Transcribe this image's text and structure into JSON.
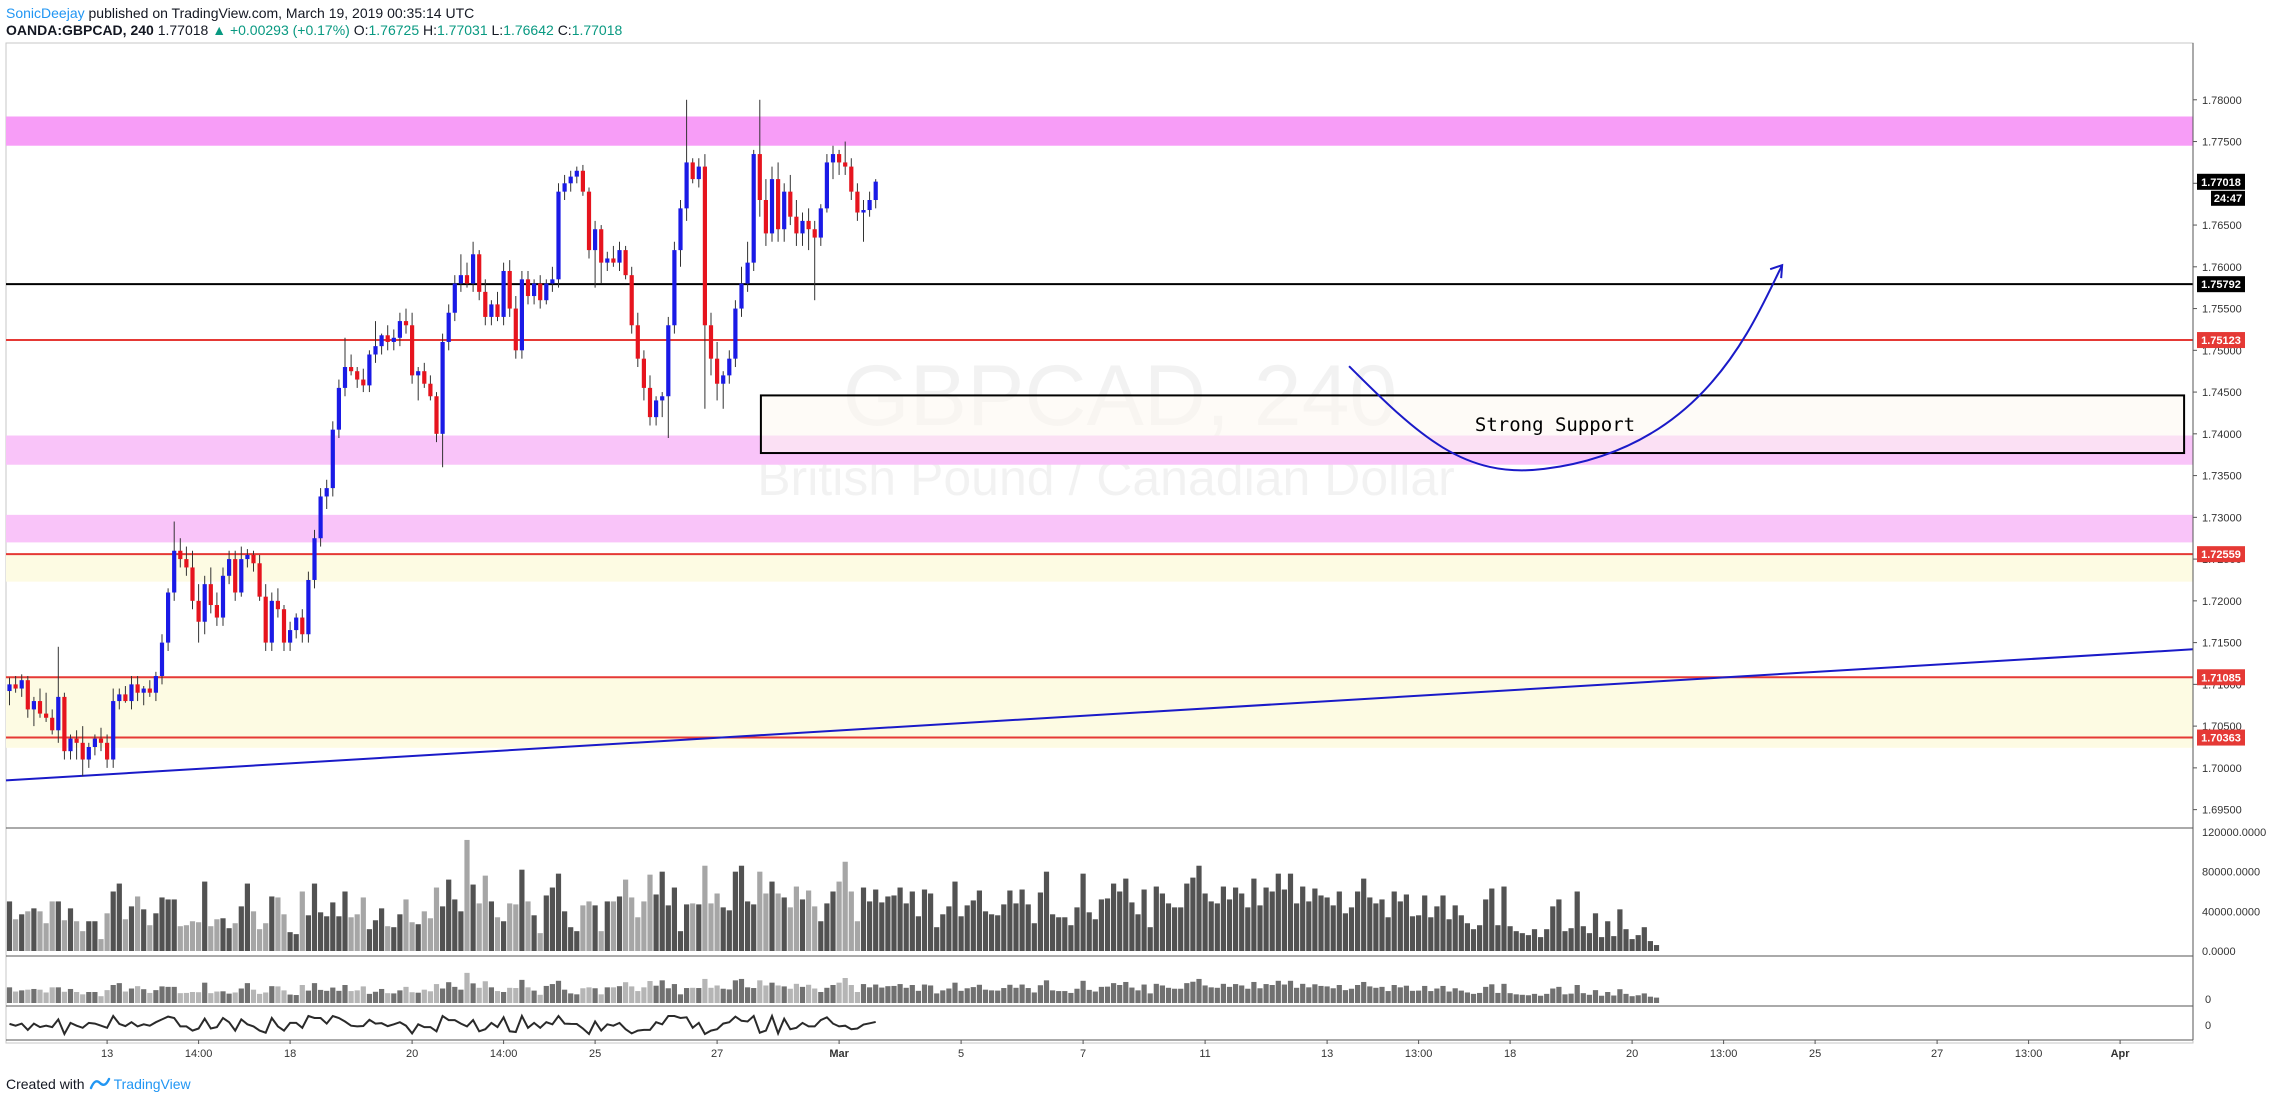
{
  "header": {
    "author": "SonicDeejay",
    "published_text": " published on TradingView.com, March 19, 2019 00:35:14 UTC",
    "symbol": "OANDA:GBPCAD, 240",
    "last": "1.77018",
    "change": "▲ +0.00293 (+0.17%)",
    "o_label": "O:",
    "o_value": "1.76725",
    "h_label": "H:",
    "h_value": "1.77031",
    "l_label": "L:",
    "l_value": "1.76642",
    "c_label": "C:",
    "c_value": "1.77018"
  },
  "footer": {
    "created_text": "Created with",
    "brand": "TradingView"
  },
  "chart_data": {
    "type": "candlestick",
    "watermark_symbol": "GBPCAD, 240",
    "watermark_name": "British Pound / Canadian Dollar",
    "y_ticks": [
      "1.78000",
      "1.77500",
      "1.77000",
      "1.76500",
      "1.76000",
      "1.75500",
      "1.75000",
      "1.74500",
      "1.74000",
      "1.73500",
      "1.73000",
      "1.72500",
      "1.72000",
      "1.71500",
      "1.71000",
      "1.70500",
      "1.70000",
      "1.69500"
    ],
    "ylim": [
      1.6928,
      1.7868
    ],
    "x_ticks": [
      {
        "label": "13",
        "i": 16
      },
      {
        "label": "14:00",
        "i": 31
      },
      {
        "label": "18",
        "i": 46
      },
      {
        "label": "20",
        "i": 66
      },
      {
        "label": "14:00",
        "i": 81
      },
      {
        "label": "25",
        "i": 96
      },
      {
        "label": "27",
        "i": 116
      },
      {
        "label": "Mar",
        "i": 136
      },
      {
        "label": "5",
        "i": 156
      },
      {
        "label": "7",
        "i": 176
      },
      {
        "label": "11",
        "i": 196
      },
      {
        "label": "13",
        "i": 216
      },
      {
        "label": "13:00",
        "i": 231
      },
      {
        "label": "18",
        "i": 246
      },
      {
        "label": "20",
        "i": 266
      },
      {
        "label": "13:00",
        "i": 281
      },
      {
        "label": "25",
        "i": 296
      },
      {
        "label": "27",
        "i": 316
      },
      {
        "label": "13:00",
        "i": 331
      },
      {
        "label": "Apr",
        "i": 346
      }
    ],
    "zones": [
      {
        "kind": "resistance",
        "y1": 1.7745,
        "y2": 1.778,
        "color": "#f79df7"
      },
      {
        "kind": "support",
        "y1": 1.7363,
        "y2": 1.7398,
        "color": "#f9c4f9"
      },
      {
        "kind": "support",
        "y1": 1.727,
        "y2": 1.7303,
        "color": "#f9c4f9"
      },
      {
        "kind": "area",
        "y1": 1.7223,
        "y2": 1.7256,
        "color": "#fdfbe3"
      },
      {
        "kind": "area",
        "y1": 1.7024,
        "y2": 1.7108,
        "color": "#fdfbe3"
      }
    ],
    "levels": [
      {
        "value": 1.75792,
        "label": "1.75792",
        "color": "#000000"
      },
      {
        "value": 1.75123,
        "label": "1.75123",
        "color": "#e53935"
      },
      {
        "value": 1.72559,
        "label": "1.72559",
        "color": "#e53935"
      },
      {
        "value": 1.71085,
        "label": "1.71085",
        "color": "#e53935"
      },
      {
        "value": 1.70363,
        "label": "1.70363",
        "color": "#e53935"
      }
    ],
    "last_price": {
      "value": 1.77018,
      "label": "1.77018",
      "countdown": "24:47"
    },
    "support_box": {
      "label": "Strong Support",
      "top": 1.7446,
      "bottom": 1.7377,
      "i_start": 124,
      "i_end": 356
    },
    "trendline": {
      "i1": 0,
      "y1": 1.6985,
      "i2": 356,
      "y2": 1.7142,
      "color": "#1a1ac8"
    },
    "arrow_path": {
      "color": "#1a1ac8",
      "start": [
        219.6,
        1.7481
      ],
      "low": [
        251.6,
        1.7358
      ],
      "end": [
        290.6,
        1.7602
      ]
    },
    "volume": {
      "ticks": [
        "120000.0000",
        "80000.0000",
        "40000.0000",
        "0.0000"
      ],
      "max": 120000,
      "values": [
        50000,
        32000,
        37000,
        40000,
        43000,
        40000,
        28000,
        50000,
        50000,
        31000,
        43000,
        30000,
        20000,
        30000,
        30000,
        12000,
        38000,
        60000,
        68000,
        32000,
        45000,
        55000,
        42000,
        26000,
        38000,
        54000,
        52000,
        52000,
        25000,
        26000,
        30000,
        29000,
        70000,
        25000,
        32000,
        33000,
        23000,
        28000,
        45000,
        68000,
        40000,
        22000,
        28000,
        55000,
        54000,
        37000,
        19000,
        17000,
        60000,
        36000,
        68000,
        39000,
        35000,
        49000,
        35000,
        60000,
        34000,
        37000,
        54000,
        22000,
        31000,
        43000,
        25000,
        24000,
        37000,
        52000,
        29000,
        27000,
        40000,
        33000,
        64000,
        45000,
        72000,
        52000,
        40000,
        112000,
        67000,
        48000,
        76000,
        50000,
        34000,
        30000,
        48000,
        47000,
        82000,
        50000,
        36000,
        18000,
        56000,
        64000,
        78000,
        40000,
        24000,
        20000,
        46000,
        50000,
        46000,
        20000,
        50000,
        50000,
        55000,
        72000,
        54000,
        34000,
        50000,
        77000,
        57000,
        80000,
        46000,
        64000,
        20000,
        47000,
        48000,
        47000,
        86000,
        48000,
        58000,
        44000,
        41000,
        80000,
        86000,
        50000,
        47000,
        80000,
        58000,
        70000,
        58000,
        54000,
        44000,
        65000,
        52000,
        61000,
        45000,
        30000,
        48000,
        60000,
        70000,
        90000,
        60000,
        30000,
        64000,
        50000,
        62000,
        49000,
        55000,
        56000,
        64000,
        48000,
        60000,
        35000,
        62000,
        58000,
        24000,
        37000,
        45000,
        70000,
        35000,
        46000,
        51000,
        61000,
        40000,
        37000,
        36000,
        47000,
        61000,
        48000,
        62000,
        47000,
        28000,
        59000,
        80000,
        37000,
        34000,
        34000,
        26000,
        44000,
        78000,
        39000,
        32000,
        52000,
        53000,
        68000,
        60000,
        73000,
        49000,
        37000,
        62000,
        24000,
        65000,
        58000,
        48000,
        44000,
        44000,
        68000,
        74000,
        86000,
        58000,
        50000,
        48000,
        65000,
        52000,
        64000,
        58000,
        44000,
        73000,
        46000,
        64000,
        60000,
        78000,
        62000,
        78000,
        48000,
        65000,
        50000,
        63000,
        56000,
        54000,
        46000,
        60000,
        38000,
        44000,
        60000,
        73000,
        54000,
        48000,
        52000,
        34000,
        60000,
        50000,
        57000,
        35000,
        36000,
        56000,
        34000,
        45000,
        56000,
        32000,
        46000,
        36000,
        28000,
        22000,
        26000,
        52000,
        63000,
        26000,
        65000,
        25000,
        20000,
        18000,
        16000,
        22000,
        14000,
        22000,
        45000,
        52000,
        20000,
        23000,
        60000,
        25000,
        18000,
        38000,
        14000,
        30000,
        15000,
        42000,
        22000,
        12000,
        16000,
        24000,
        10000,
        6000
      ]
    },
    "oscillator": {
      "ticks": [
        "0"
      ]
    },
    "sub_oscillator": {
      "ticks": [
        "0"
      ]
    },
    "candles": [
      [
        1.7092,
        1.7108,
        1.7075,
        1.71
      ],
      [
        1.71,
        1.711,
        1.709,
        1.7095
      ],
      [
        1.7095,
        1.7112,
        1.7085,
        1.7105
      ],
      [
        1.7105,
        1.711,
        1.706,
        1.707
      ],
      [
        1.707,
        1.7085,
        1.705,
        1.708
      ],
      [
        1.708,
        1.7095,
        1.706,
        1.7065
      ],
      [
        1.7065,
        1.709,
        1.7055,
        1.706
      ],
      [
        1.706,
        1.707,
        1.704,
        1.7045
      ],
      [
        1.7045,
        1.7145,
        1.703,
        1.7085
      ],
      [
        1.7085,
        1.709,
        1.701,
        1.702
      ],
      [
        1.702,
        1.704,
        1.701,
        1.7035
      ],
      [
        1.7035,
        1.7045,
        1.701,
        1.703
      ],
      [
        1.703,
        1.705,
        1.699,
        1.701
      ],
      [
        1.701,
        1.703,
        1.7,
        1.7025
      ],
      [
        1.7025,
        1.704,
        1.7015,
        1.7035
      ],
      [
        1.7035,
        1.7048,
        1.702,
        1.703
      ],
      [
        1.703,
        1.704,
        1.7,
        1.701
      ],
      [
        1.701,
        1.7095,
        1.7,
        1.708
      ],
      [
        1.708,
        1.7095,
        1.707,
        1.7088
      ],
      [
        1.7088,
        1.7098,
        1.7078,
        1.708
      ],
      [
        1.708,
        1.711,
        1.707,
        1.71
      ],
      [
        1.71,
        1.711,
        1.708,
        1.709
      ],
      [
        1.709,
        1.7098,
        1.7075,
        1.7095
      ],
      [
        1.7095,
        1.7105,
        1.7085,
        1.709
      ],
      [
        1.709,
        1.7115,
        1.708,
        1.711
      ],
      [
        1.711,
        1.716,
        1.71,
        1.715
      ],
      [
        1.715,
        1.7215,
        1.714,
        1.721
      ],
      [
        1.721,
        1.7295,
        1.72,
        1.726
      ],
      [
        1.726,
        1.7275,
        1.724,
        1.725
      ],
      [
        1.725,
        1.7265,
        1.723,
        1.724
      ],
      [
        1.724,
        1.726,
        1.719,
        1.72
      ],
      [
        1.72,
        1.722,
        1.715,
        1.7175
      ],
      [
        1.7175,
        1.723,
        1.716,
        1.722
      ],
      [
        1.722,
        1.724,
        1.7185,
        1.7195
      ],
      [
        1.7195,
        1.721,
        1.717,
        1.718
      ],
      [
        1.718,
        1.724,
        1.717,
        1.723
      ],
      [
        1.723,
        1.726,
        1.722,
        1.725
      ],
      [
        1.725,
        1.726,
        1.72,
        1.721
      ],
      [
        1.721,
        1.7265,
        1.7205,
        1.725
      ],
      [
        1.725,
        1.7262,
        1.724,
        1.7255
      ],
      [
        1.7255,
        1.726,
        1.7235,
        1.7245
      ],
      [
        1.7245,
        1.7255,
        1.72,
        1.7205
      ],
      [
        1.7205,
        1.722,
        1.714,
        1.715
      ],
      [
        1.715,
        1.721,
        1.714,
        1.72
      ],
      [
        1.72,
        1.7215,
        1.718,
        1.719
      ],
      [
        1.719,
        1.7195,
        1.714,
        1.715
      ],
      [
        1.715,
        1.7175,
        1.714,
        1.7165
      ],
      [
        1.7165,
        1.7185,
        1.7155,
        1.718
      ],
      [
        1.718,
        1.719,
        1.715,
        1.716
      ],
      [
        1.716,
        1.7235,
        1.715,
        1.7225
      ],
      [
        1.7225,
        1.7285,
        1.7215,
        1.7275
      ],
      [
        1.7275,
        1.7335,
        1.7265,
        1.7325
      ],
      [
        1.7325,
        1.7345,
        1.731,
        1.7335
      ],
      [
        1.7335,
        1.7415,
        1.7325,
        1.7405
      ],
      [
        1.7405,
        1.7465,
        1.7395,
        1.7455
      ],
      [
        1.7455,
        1.7515,
        1.7445,
        1.748
      ],
      [
        1.748,
        1.7495,
        1.747,
        1.7475
      ],
      [
        1.7475,
        1.748,
        1.7455,
        1.7465
      ],
      [
        1.7465,
        1.7478,
        1.745,
        1.7458
      ],
      [
        1.7458,
        1.75,
        1.745,
        1.7495
      ],
      [
        1.7495,
        1.7535,
        1.7485,
        1.7505
      ],
      [
        1.7505,
        1.752,
        1.7495,
        1.7518
      ],
      [
        1.7518,
        1.753,
        1.75,
        1.751
      ],
      [
        1.751,
        1.7525,
        1.75,
        1.7515
      ],
      [
        1.7515,
        1.7545,
        1.7505,
        1.7535
      ],
      [
        1.7535,
        1.755,
        1.752,
        1.753
      ],
      [
        1.753,
        1.7545,
        1.746,
        1.747
      ],
      [
        1.747,
        1.748,
        1.744,
        1.7475
      ],
      [
        1.7475,
        1.7485,
        1.7455,
        1.746
      ],
      [
        1.746,
        1.747,
        1.744,
        1.7445
      ],
      [
        1.7445,
        1.745,
        1.739,
        1.74
      ],
      [
        1.74,
        1.752,
        1.736,
        1.751
      ],
      [
        1.751,
        1.7555,
        1.75,
        1.7545
      ],
      [
        1.7545,
        1.759,
        1.7535,
        1.758
      ],
      [
        1.758,
        1.7615,
        1.757,
        1.759
      ],
      [
        1.759,
        1.7605,
        1.7575,
        1.758
      ],
      [
        1.758,
        1.763,
        1.757,
        1.7615
      ],
      [
        1.7615,
        1.762,
        1.756,
        1.757
      ],
      [
        1.757,
        1.7585,
        1.753,
        1.754
      ],
      [
        1.754,
        1.756,
        1.753,
        1.7555
      ],
      [
        1.7555,
        1.757,
        1.7535,
        1.754
      ],
      [
        1.754,
        1.7605,
        1.753,
        1.7595
      ],
      [
        1.7595,
        1.7608,
        1.754,
        1.755
      ],
      [
        1.755,
        1.7565,
        1.749,
        1.75
      ],
      [
        1.75,
        1.7595,
        1.749,
        1.7585
      ],
      [
        1.7585,
        1.7595,
        1.7555,
        1.7565
      ],
      [
        1.7565,
        1.7585,
        1.7555,
        1.758
      ],
      [
        1.758,
        1.759,
        1.755,
        1.756
      ],
      [
        1.756,
        1.7585,
        1.7555,
        1.758
      ],
      [
        1.758,
        1.76,
        1.757,
        1.7585
      ],
      [
        1.7585,
        1.77,
        1.7575,
        1.769
      ],
      [
        1.769,
        1.771,
        1.768,
        1.77
      ],
      [
        1.77,
        1.7715,
        1.769,
        1.7708
      ],
      [
        1.7708,
        1.772,
        1.77,
        1.7715
      ],
      [
        1.7715,
        1.7722,
        1.7685,
        1.769
      ],
      [
        1.769,
        1.7695,
        1.761,
        1.762
      ],
      [
        1.762,
        1.7655,
        1.7575,
        1.7645
      ],
      [
        1.7645,
        1.765,
        1.758,
        1.7605
      ],
      [
        1.7605,
        1.7618,
        1.7595,
        1.761
      ],
      [
        1.761,
        1.7625,
        1.76,
        1.7605
      ],
      [
        1.7605,
        1.763,
        1.7595,
        1.762
      ],
      [
        1.762,
        1.7625,
        1.7585,
        1.759
      ],
      [
        1.759,
        1.76,
        1.752,
        1.753
      ],
      [
        1.753,
        1.7545,
        1.748,
        1.749
      ],
      [
        1.749,
        1.75,
        1.744,
        1.7455
      ],
      [
        1.7455,
        1.747,
        1.741,
        1.742
      ],
      [
        1.742,
        1.7445,
        1.741,
        1.744
      ],
      [
        1.744,
        1.745,
        1.742,
        1.7445
      ],
      [
        1.7445,
        1.754,
        1.7395,
        1.753
      ],
      [
        1.753,
        1.763,
        1.752,
        1.762
      ],
      [
        1.762,
        1.768,
        1.76,
        1.767
      ],
      [
        1.767,
        1.78,
        1.7655,
        1.7725
      ],
      [
        1.7725,
        1.773,
        1.77,
        1.7705
      ],
      [
        1.7705,
        1.773,
        1.7695,
        1.772
      ],
      [
        1.772,
        1.7735,
        1.743,
        1.753
      ],
      [
        1.753,
        1.7545,
        1.747,
        1.749
      ],
      [
        1.749,
        1.751,
        1.744,
        1.746
      ],
      [
        1.746,
        1.7475,
        1.743,
        1.747
      ],
      [
        1.747,
        1.75,
        1.746,
        1.749
      ],
      [
        1.749,
        1.756,
        1.748,
        1.755
      ],
      [
        1.755,
        1.76,
        1.754,
        1.758
      ],
      [
        1.758,
        1.763,
        1.757,
        1.7605
      ],
      [
        1.7605,
        1.774,
        1.7595,
        1.7735
      ],
      [
        1.7735,
        1.78,
        1.766,
        1.768
      ],
      [
        1.768,
        1.7705,
        1.7625,
        1.764
      ],
      [
        1.764,
        1.772,
        1.763,
        1.7705
      ],
      [
        1.7705,
        1.7725,
        1.763,
        1.7645
      ],
      [
        1.7645,
        1.77,
        1.763,
        1.769
      ],
      [
        1.769,
        1.771,
        1.765,
        1.766
      ],
      [
        1.766,
        1.768,
        1.7625,
        1.764
      ],
      [
        1.764,
        1.7665,
        1.7625,
        1.7655
      ],
      [
        1.7655,
        1.767,
        1.762,
        1.7645
      ],
      [
        1.7645,
        1.7655,
        1.756,
        1.7635
      ],
      [
        1.7635,
        1.7675,
        1.7625,
        1.767
      ],
      [
        1.767,
        1.7735,
        1.7665,
        1.7725
      ],
      [
        1.7725,
        1.7745,
        1.7705,
        1.7735
      ],
      [
        1.7735,
        1.774,
        1.771,
        1.7725
      ],
      [
        1.7725,
        1.775,
        1.771,
        1.772
      ],
      [
        1.772,
        1.773,
        1.768,
        1.769
      ],
      [
        1.769,
        1.77,
        1.7655,
        1.7665
      ],
      [
        1.7665,
        1.768,
        1.763,
        1.7668
      ],
      [
        1.7668,
        1.769,
        1.766,
        1.768
      ],
      [
        1.768,
        1.7705,
        1.767,
        1.7702
      ]
    ]
  }
}
